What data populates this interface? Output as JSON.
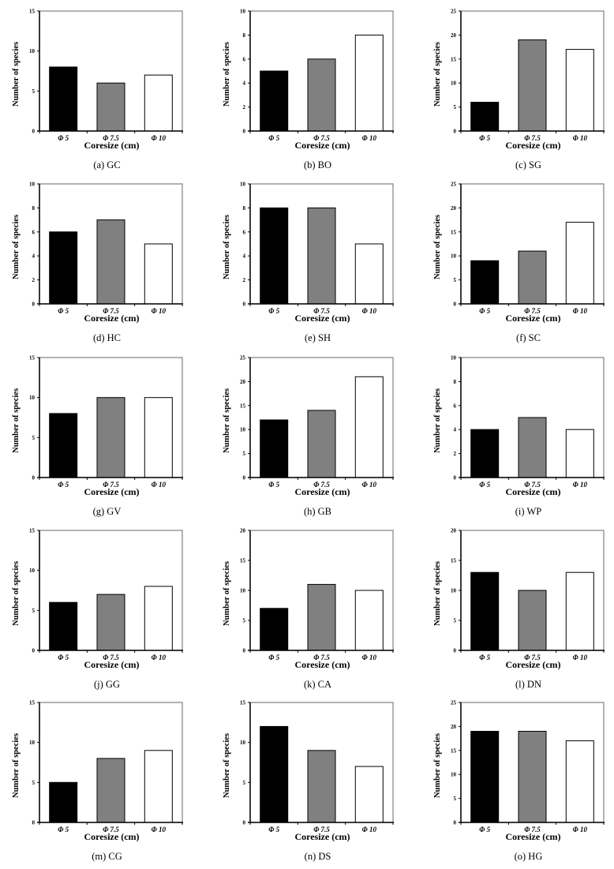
{
  "figure": {
    "shared": {
      "xlabel": "Coresize (cm)",
      "ylabel": "Number of species",
      "categories": [
        "Φ 5",
        "Φ 7.5",
        "Φ 10"
      ],
      "bar_colors": [
        "#000000",
        "#808080",
        "#ffffff"
      ],
      "bar_edge_color": "#000000",
      "frame_color": "#808080",
      "axis_color": "#000000"
    }
  },
  "chart_data": [
    {
      "type": "bar",
      "panel": "(a)",
      "site": "GC",
      "caption": "(a)  GC",
      "title": "",
      "xlabel": "Coresize (cm)",
      "ylabel": "Number of species",
      "categories": [
        "Φ 5",
        "Φ 7.5",
        "Φ 10"
      ],
      "values": [
        8,
        6,
        7
      ],
      "ylim": [
        0,
        15
      ],
      "yticks": [
        0,
        5,
        10,
        15
      ],
      "grid": false
    },
    {
      "type": "bar",
      "panel": "(b)",
      "site": "BO",
      "caption": "(b)  BO",
      "title": "",
      "xlabel": "Coresize (cm)",
      "ylabel": "Number of species",
      "categories": [
        "Φ 5",
        "Φ 7.5",
        "Φ 10"
      ],
      "values": [
        5,
        6,
        8
      ],
      "ylim": [
        0,
        10
      ],
      "yticks": [
        0,
        2,
        4,
        6,
        8,
        10
      ],
      "grid": false
    },
    {
      "type": "bar",
      "panel": "(c)",
      "site": "SG",
      "caption": "(c)  SG",
      "title": "",
      "xlabel": "Coresize (cm)",
      "ylabel": "Number of species",
      "categories": [
        "Φ 5",
        "Φ 7.5",
        "Φ 10"
      ],
      "values": [
        6,
        19,
        17
      ],
      "ylim": [
        0,
        25
      ],
      "yticks": [
        0,
        5,
        10,
        15,
        20,
        25
      ],
      "grid": false
    },
    {
      "type": "bar",
      "panel": "(d)",
      "site": "HC",
      "caption": "(d)  HC",
      "title": "",
      "xlabel": "Coresize (cm)",
      "ylabel": "Number of species",
      "categories": [
        "Φ 5",
        "Φ 7.5",
        "Φ 10"
      ],
      "values": [
        6,
        7,
        5
      ],
      "ylim": [
        0,
        10
      ],
      "yticks": [
        0,
        2,
        4,
        6,
        8,
        10
      ],
      "grid": false
    },
    {
      "type": "bar",
      "panel": "(e)",
      "site": "SH",
      "caption": "(e)  SH",
      "title": "",
      "xlabel": "Coresize (cm)",
      "ylabel": "Number of species",
      "categories": [
        "Φ 5",
        "Φ 7.5",
        "Φ 10"
      ],
      "values": [
        8,
        8,
        5
      ],
      "ylim": [
        0,
        10
      ],
      "yticks": [
        0,
        2,
        4,
        6,
        8,
        10
      ],
      "grid": false
    },
    {
      "type": "bar",
      "panel": "(f)",
      "site": "SC",
      "caption": "(f)  SC",
      "title": "",
      "xlabel": "Coresize (cm)",
      "ylabel": "Number of species",
      "categories": [
        "Φ 5",
        "Φ 7.5",
        "Φ 10"
      ],
      "values": [
        9,
        11,
        17
      ],
      "ylim": [
        0,
        25
      ],
      "yticks": [
        0,
        5,
        10,
        15,
        20,
        25
      ],
      "grid": false
    },
    {
      "type": "bar",
      "panel": "(g)",
      "site": "GV",
      "caption": "(g)  GV",
      "title": "",
      "xlabel": "Coresize (cm)",
      "ylabel": "Number of species",
      "categories": [
        "Φ 5",
        "Φ 7.5",
        "Φ 10"
      ],
      "values": [
        8,
        10,
        10
      ],
      "ylim": [
        0,
        15
      ],
      "yticks": [
        0,
        5,
        10,
        15
      ],
      "grid": false
    },
    {
      "type": "bar",
      "panel": "(h)",
      "site": "GB",
      "caption": "(h)  GB",
      "title": "",
      "xlabel": "Coresize (cm)",
      "ylabel": "Number of species",
      "categories": [
        "Φ 5",
        "Φ 7.5",
        "Φ 10"
      ],
      "values": [
        12,
        14,
        21
      ],
      "ylim": [
        0,
        25
      ],
      "yticks": [
        0,
        5,
        10,
        15,
        20,
        25
      ],
      "grid": false
    },
    {
      "type": "bar",
      "panel": "(i)",
      "site": "WP",
      "caption": "(i)  WP",
      "title": "",
      "xlabel": "Coresize (cm)",
      "ylabel": "Number of species",
      "categories": [
        "Φ 5",
        "Φ 7.5",
        "Φ 10"
      ],
      "values": [
        4,
        5,
        4
      ],
      "ylim": [
        0,
        10
      ],
      "yticks": [
        0,
        2,
        4,
        6,
        8,
        10
      ],
      "grid": false
    },
    {
      "type": "bar",
      "panel": "(j)",
      "site": "GG",
      "caption": "(j)  GG",
      "title": "",
      "xlabel": "Coresize (cm)",
      "ylabel": "Number of species",
      "categories": [
        "Φ 5",
        "Φ 7.5",
        "Φ 10"
      ],
      "values": [
        6,
        7,
        8
      ],
      "ylim": [
        0,
        15
      ],
      "yticks": [
        0,
        5,
        10,
        15
      ],
      "grid": false
    },
    {
      "type": "bar",
      "panel": "(k)",
      "site": "CA",
      "caption": "(k)  CA",
      "title": "",
      "xlabel": "Coresize (cm)",
      "ylabel": "Number of species",
      "categories": [
        "Φ 5",
        "Φ 7.5",
        "Φ 10"
      ],
      "values": [
        7,
        11,
        10
      ],
      "ylim": [
        0,
        20
      ],
      "yticks": [
        0,
        5,
        10,
        15,
        20
      ],
      "grid": false
    },
    {
      "type": "bar",
      "panel": "(l)",
      "site": "DN",
      "caption": "(l)  DN",
      "title": "",
      "xlabel": "Coresize (cm)",
      "ylabel": "Number of species",
      "categories": [
        "Φ 5",
        "Φ 7.5",
        "Φ 10"
      ],
      "values": [
        13,
        10,
        13
      ],
      "ylim": [
        0,
        20
      ],
      "yticks": [
        0,
        5,
        10,
        15,
        20
      ],
      "grid": false
    },
    {
      "type": "bar",
      "panel": "(m)",
      "site": "CG",
      "caption": "(m)  CG",
      "title": "",
      "xlabel": "Coresize (cm)",
      "ylabel": "Number of species",
      "categories": [
        "Φ 5",
        "Φ 7.5",
        "Φ 10"
      ],
      "values": [
        5,
        8,
        9
      ],
      "ylim": [
        0,
        15
      ],
      "yticks": [
        0,
        5,
        10,
        15
      ],
      "grid": false
    },
    {
      "type": "bar",
      "panel": "(n)",
      "site": "DS",
      "caption": "(n)  DS",
      "title": "",
      "xlabel": "Coresize (cm)",
      "ylabel": "Number of species",
      "categories": [
        "Φ 5",
        "Φ 7.5",
        "Φ 10"
      ],
      "values": [
        12,
        9,
        7
      ],
      "ylim": [
        0,
        15
      ],
      "yticks": [
        0,
        5,
        10,
        15
      ],
      "grid": false
    },
    {
      "type": "bar",
      "panel": "(o)",
      "site": "HG",
      "caption": "(o)  HG",
      "title": "",
      "xlabel": "Coresize (cm)",
      "ylabel": "Number of species",
      "categories": [
        "Φ 5",
        "Φ 7.5",
        "Φ 10"
      ],
      "values": [
        19,
        19,
        17
      ],
      "ylim": [
        0,
        25
      ],
      "yticks": [
        0,
        5,
        10,
        15,
        20,
        25
      ],
      "grid": false
    }
  ]
}
